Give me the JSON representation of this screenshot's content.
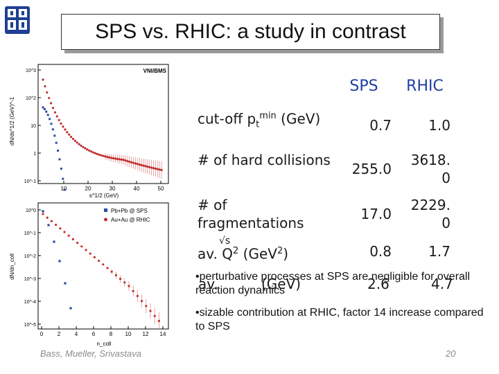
{
  "title": "SPS vs. RHIC: a study in contrast",
  "plot_top": {
    "label": "VNI/BMS",
    "ylabel": "dN/ds^1/2 (GeV)^-1",
    "xlabel": "s^1/2 (GeV)",
    "x_ticks": [
      "10",
      "20",
      "30",
      "40",
      "50"
    ],
    "y_ticks": [
      "10^3",
      "10^2",
      "10",
      "1",
      "10^-1"
    ]
  },
  "plot_bottom": {
    "ylabel": "dN/dn_coll",
    "xlabel": "n_coll",
    "x_ticks": [
      "0",
      "2",
      "4",
      "6",
      "8",
      "10",
      "12",
      "14"
    ],
    "y_ticks": [
      "10^0",
      "10^-1",
      "10^-2",
      "10^-3",
      "10^-4",
      "10^-5"
    ],
    "legend": [
      {
        "label": "Pb+Pb @ SPS",
        "color": "#2b4aa8"
      },
      {
        "label": "Au+Au @ RHIC",
        "color": "#c0302e"
      }
    ]
  },
  "table": {
    "headers": {
      "sps": "SPS",
      "rhic": "RHIC"
    },
    "rows": [
      {
        "label": "cut-off p",
        "sub": "t",
        "sup": "min",
        "tail": " (GeV)",
        "sps": "0.7",
        "rhic": "1.0"
      },
      {
        "label": "# of hard collisions",
        "sps": "255.0",
        "rhic_a": "3618.",
        "rhic_b": "0"
      },
      {
        "label": "# of fragmentations",
        "sps": "17.0",
        "rhic_a": "2229.",
        "rhic_b": "0"
      },
      {
        "label": "av. Q",
        "sup": "2",
        "tail": " (GeV",
        "tail_sup": "2",
        "tail_end": ")",
        "sps": "0.8",
        "rhic": "1.7"
      }
    ],
    "sqrt_symbol": "√s",
    "overlay_row": {
      "label": "av.",
      "unit": "(GeV)",
      "sps": "2.6",
      "rhic": "4.7"
    }
  },
  "bullets": [
    "•perturbative processes at SPS are negligible for overall reaction dynamics",
    "•sizable contribution at RHIC, factor 14 increase compared to SPS"
  ],
  "footer": {
    "authors": "Bass, Mueller, Srivastava",
    "page": "20"
  }
}
